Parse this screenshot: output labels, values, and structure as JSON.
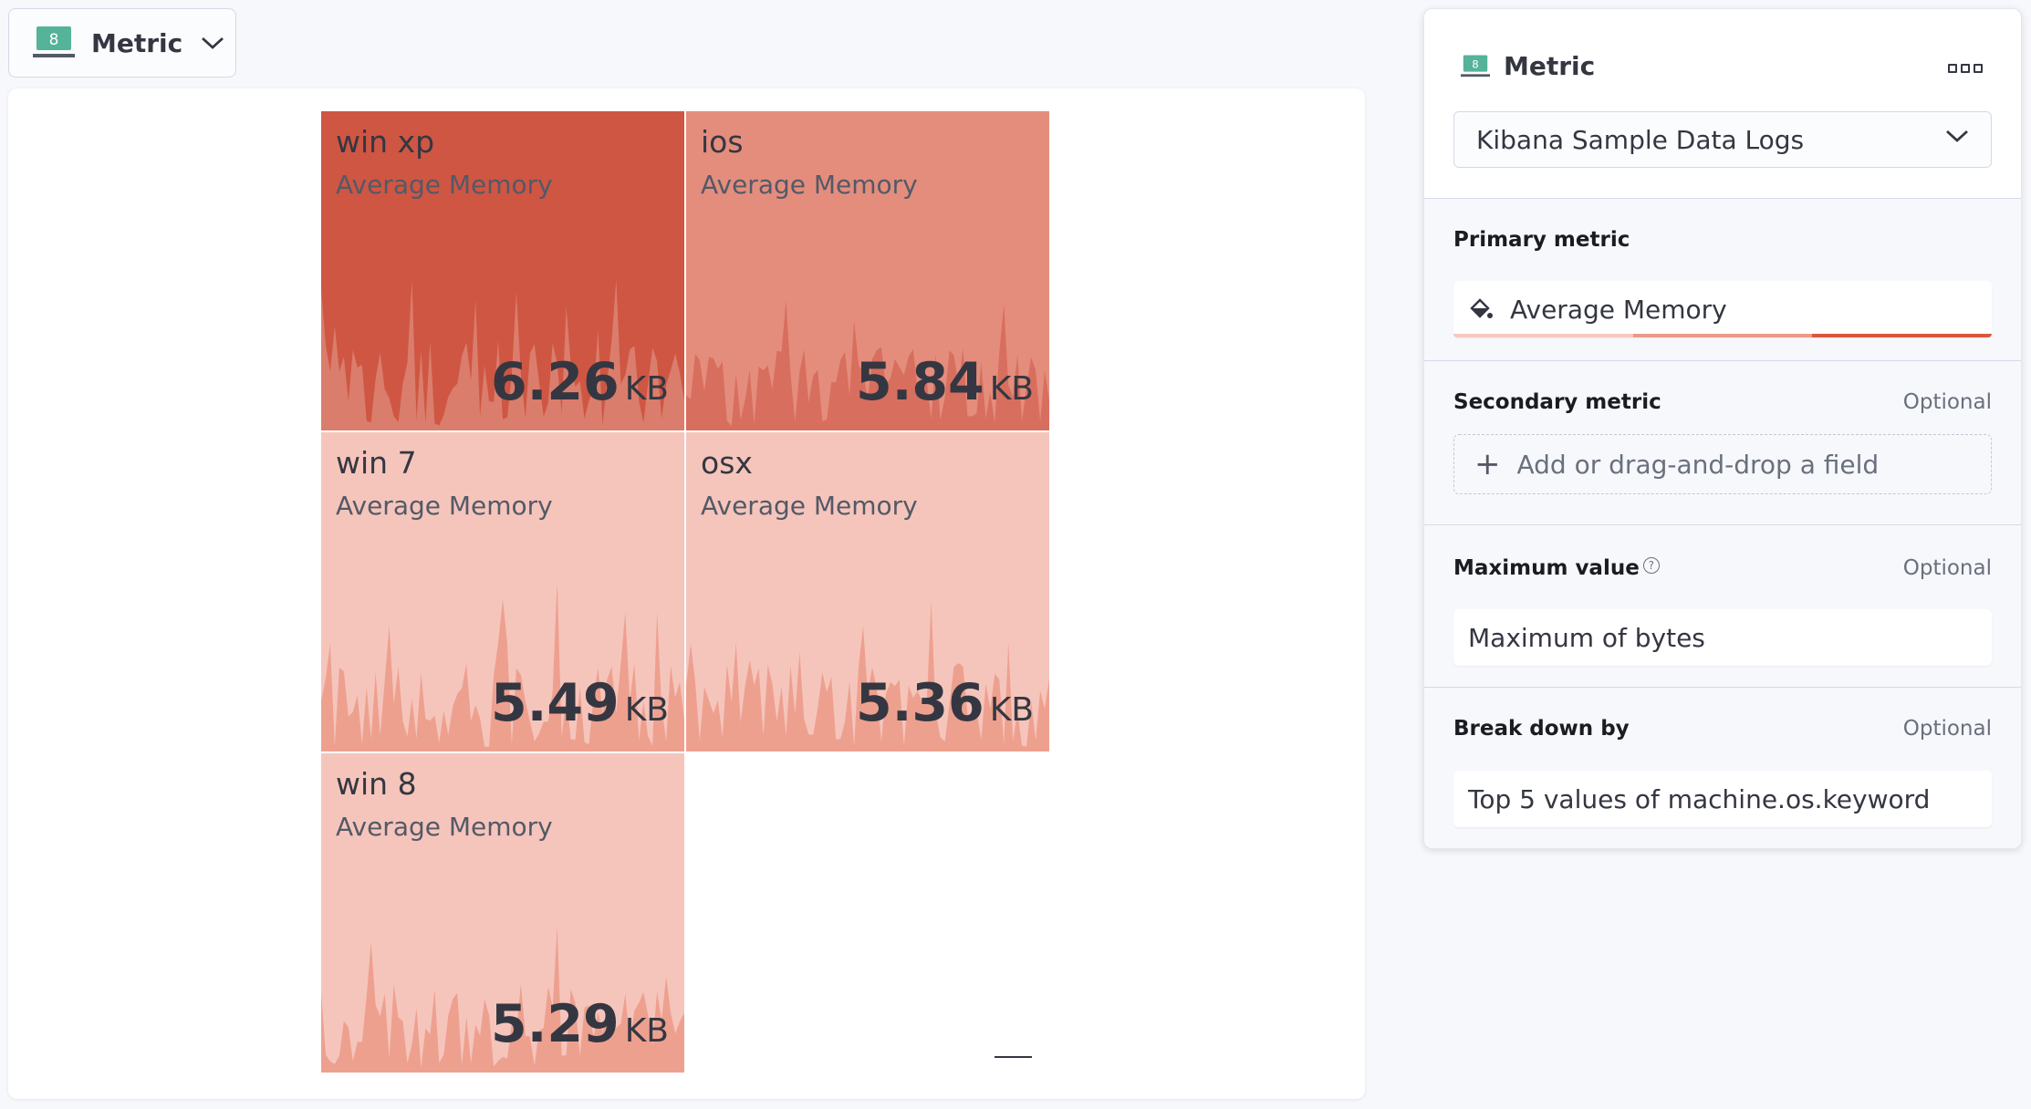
{
  "type_switch": {
    "label": "Metric",
    "icon": "metric-vis-icon"
  },
  "metric_tiles": [
    {
      "title": "win xp",
      "subtitle": "Average Memory",
      "value": "6.26",
      "unit": "KB",
      "color": "#cf5643",
      "spark_color": "#da7d6c"
    },
    {
      "title": "ios",
      "subtitle": "Average Memory",
      "value": "5.84",
      "unit": "KB",
      "color": "#e48d7d",
      "spark_color": "#d86e5e"
    },
    {
      "title": "win 7",
      "subtitle": "Average Memory",
      "value": "5.49",
      "unit": "KB",
      "color": "#f5c5bc",
      "spark_color": "#eea08f"
    },
    {
      "title": "osx",
      "subtitle": "Average Memory",
      "value": "5.36",
      "unit": "KB",
      "color": "#f5c5bc",
      "spark_color": "#eea08f"
    },
    {
      "title": "win 8",
      "subtitle": "Average Memory",
      "value": "5.29",
      "unit": "KB",
      "color": "#f5c5bc",
      "spark_color": "#eea08f"
    }
  ],
  "panel": {
    "title": "Metric",
    "data_source": "Kibana Sample Data Logs",
    "primary_metric": {
      "label": "Primary metric",
      "field": "Average Memory",
      "palette": [
        "#f6c9bf",
        "#eb9a89",
        "#d8583f"
      ]
    },
    "secondary_metric": {
      "label": "Secondary metric",
      "optional": "Optional",
      "placeholder": "Add or drag-and-drop a field"
    },
    "maximum_value": {
      "label": "Maximum value",
      "optional": "Optional",
      "field": "Maximum of bytes"
    },
    "break_down_by": {
      "label": "Break down by",
      "optional": "Optional",
      "field": "Top 5 values of machine.os.keyword"
    }
  }
}
